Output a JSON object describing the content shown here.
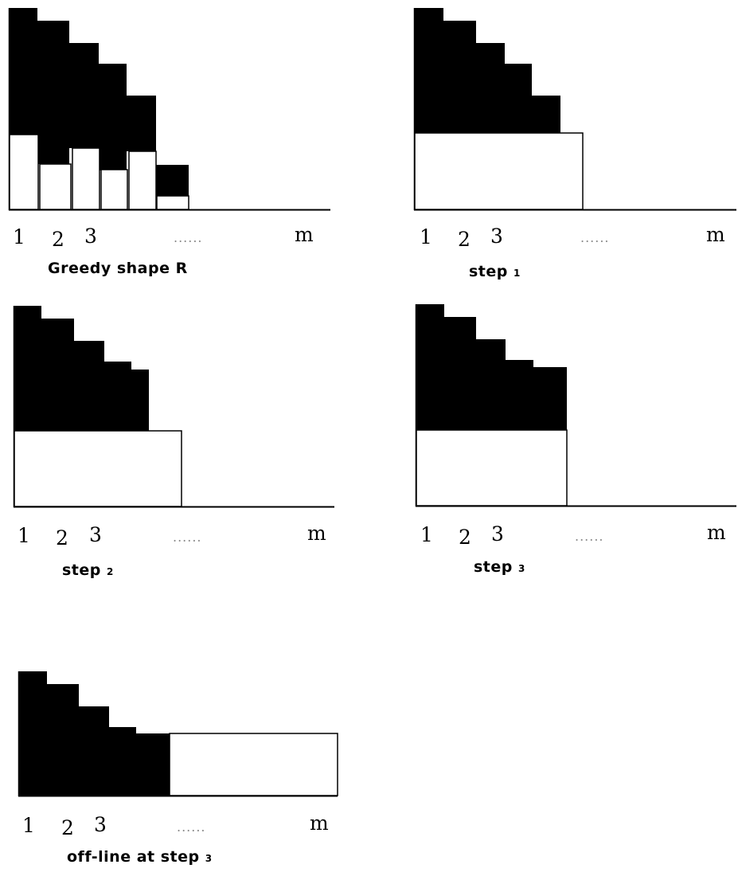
{
  "panels": [
    {
      "caption": "Greedy shape R",
      "axis": {
        "labels": [
          "1",
          "2",
          "3"
        ],
        "dots": "......",
        "end_label": "m"
      }
    },
    {
      "caption": "step",
      "caption_sub": "1",
      "axis": {
        "labels": [
          "1",
          "2",
          "3"
        ],
        "dots": "......",
        "end_label": "m"
      }
    },
    {
      "caption": "step",
      "caption_sub": "2",
      "axis": {
        "labels": [
          "1",
          "2",
          "3"
        ],
        "dots": "......",
        "end_label": "m"
      }
    },
    {
      "caption": "step",
      "caption_sub": "3",
      "axis": {
        "labels": [
          "1",
          "2",
          "3"
        ],
        "dots": "......",
        "end_label": "m"
      }
    },
    {
      "caption": "off-line at step",
      "caption_sub": "3",
      "axis": {
        "labels": [
          "1",
          "2",
          "3"
        ],
        "dots": "......",
        "end_label": "m"
      }
    }
  ],
  "colors": {
    "fill": "#000000",
    "background": "#ffffff",
    "stroke": "#000000"
  }
}
